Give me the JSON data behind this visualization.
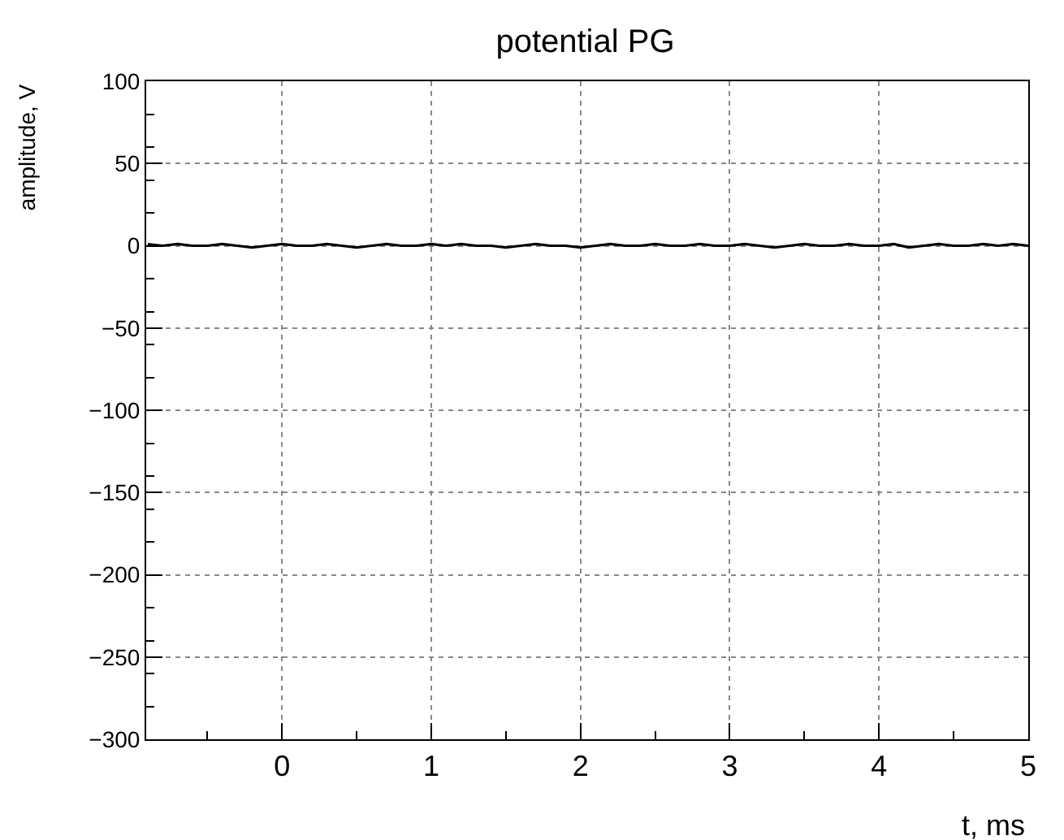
{
  "chart_data": {
    "type": "line",
    "title": "potential PG",
    "xlabel": "t, ms",
    "ylabel": "amplitude, V",
    "x": [
      -0.9,
      -0.8,
      -0.7,
      -0.6,
      -0.5,
      -0.4,
      -0.3,
      -0.2,
      -0.1,
      0.0,
      0.1,
      0.2,
      0.3,
      0.4,
      0.5,
      0.6,
      0.7,
      0.8,
      0.9,
      1.0,
      1.1,
      1.2,
      1.3,
      1.4,
      1.5,
      1.6,
      1.7,
      1.8,
      1.9,
      2.0,
      2.1,
      2.2,
      2.3,
      2.4,
      2.5,
      2.6,
      2.7,
      2.8,
      2.9,
      3.0,
      3.1,
      3.2,
      3.3,
      3.4,
      3.5,
      3.6,
      3.7,
      3.8,
      3.9,
      4.0,
      4.1,
      4.2,
      4.3,
      4.4,
      4.5,
      4.6,
      4.7,
      4.8,
      4.9,
      5.0
    ],
    "series": [
      {
        "color": "#000000",
        "values": [
          1,
          0,
          1,
          0,
          0,
          1,
          0,
          -1,
          0,
          1,
          0,
          0,
          1,
          0,
          -1,
          0,
          1,
          0,
          0,
          1,
          0,
          1,
          0,
          0,
          -1,
          0,
          1,
          0,
          0,
          -1,
          0,
          1,
          0,
          0,
          1,
          0,
          0,
          1,
          0,
          0,
          1,
          0,
          -1,
          0,
          1,
          0,
          0,
          1,
          0,
          0,
          1,
          -1,
          0,
          1,
          0,
          0,
          1,
          0,
          1,
          0
        ]
      }
    ],
    "xlim": [
      -0.91,
      5
    ],
    "xticks": [
      0,
      1,
      2,
      3,
      4,
      5
    ],
    "ylim": [
      -300,
      100
    ],
    "yticks": [
      -300,
      -250,
      -200,
      -150,
      -100,
      -50,
      0,
      50,
      100
    ],
    "grid": true,
    "marker": "none",
    "line_style": "solid"
  }
}
